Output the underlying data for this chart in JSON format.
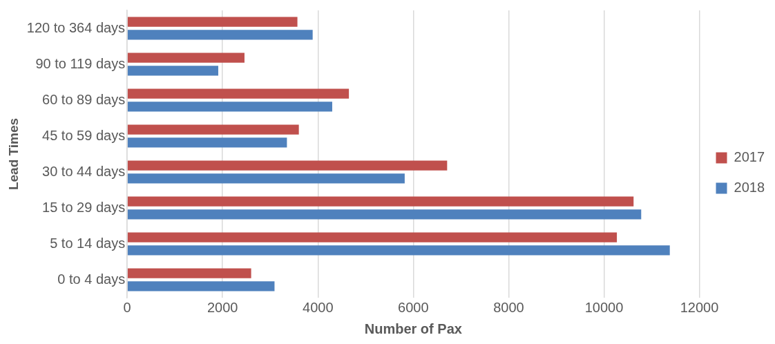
{
  "chart_data": {
    "type": "bar",
    "orientation": "horizontal",
    "xlabel": "Number of Pax",
    "ylabel": "Lead Times",
    "categories": [
      "120 to 364 days",
      "90 to 119 days",
      "60 to 89 days",
      "45 to 59 days",
      "30 to 44 days",
      "15 to 29 days",
      "5 to 14 days",
      "0 to 4 days"
    ],
    "series": [
      {
        "name": "2017",
        "color": "#c0504d",
        "values": [
          3570,
          2460,
          4650,
          3600,
          6710,
          10620,
          10270,
          2600
        ]
      },
      {
        "name": "2018",
        "color": "#4f81bd",
        "values": [
          3890,
          1910,
          4300,
          3350,
          5820,
          10780,
          11380,
          3090
        ]
      }
    ],
    "xlim": [
      0,
      12000
    ],
    "xticks": [
      0,
      2000,
      4000,
      6000,
      8000,
      10000,
      12000
    ],
    "grid": "x",
    "legend": "right"
  }
}
